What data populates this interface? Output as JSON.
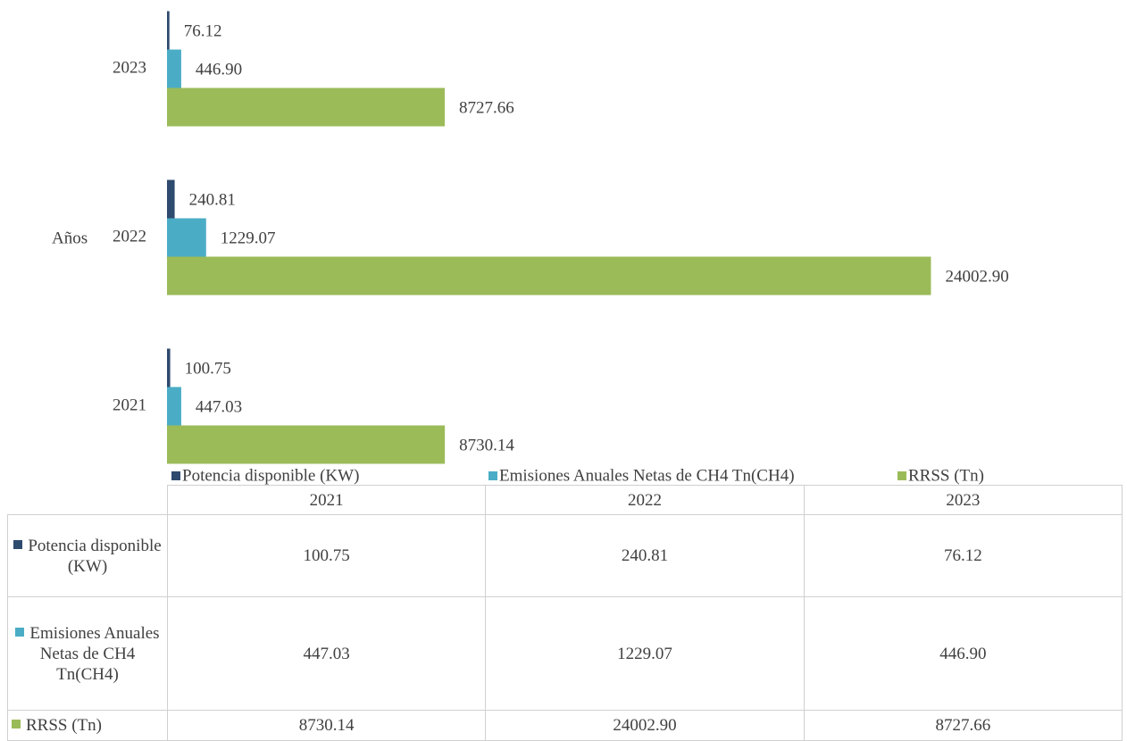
{
  "chart_data": {
    "type": "barh",
    "ylabel": "Años",
    "categories": [
      "2021",
      "2022",
      "2023"
    ],
    "series": [
      {
        "name": "Potencia disponible (KW)",
        "color": "#2e4a6e",
        "values": [
          100.75,
          240.81,
          76.12
        ],
        "value_labels": [
          "100.75",
          "240.81",
          "76.12"
        ]
      },
      {
        "name": "Emisiones Anuales Netas de CH4 Tn(CH4)",
        "color": "#4bacc6",
        "values": [
          447.03,
          1229.07,
          446.9
        ],
        "value_labels": [
          "447.03",
          "1229.07",
          "446.90"
        ]
      },
      {
        "name": "RRSS (Tn)",
        "color": "#9bbb59",
        "values": [
          8730.14,
          24002.9,
          8727.66
        ],
        "value_labels": [
          "8730.14",
          "24002.90",
          "8727.66"
        ]
      }
    ],
    "xlim": [
      0,
      25000
    ],
    "data_table": true
  }
}
